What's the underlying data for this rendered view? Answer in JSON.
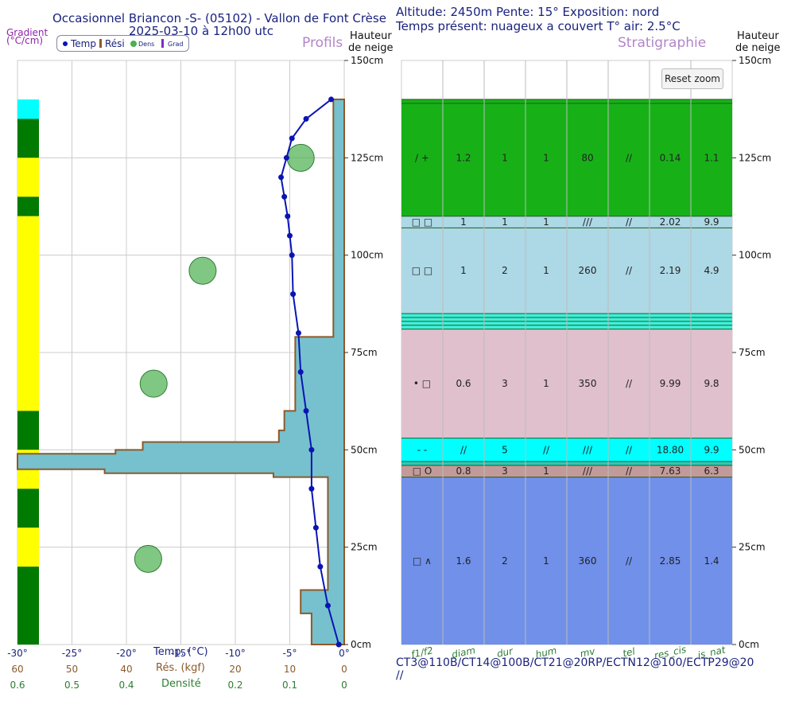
{
  "header": {
    "title_line1": "Occasionnel Briancon -S- (05102) - Vallon de Font Crèse",
    "title_line2": "2025-03-10 à 12h00 utc",
    "meta_line1": "Altitude: 2450m Pente: 15° Exposition: nord",
    "meta_line2": "Temps présent: nuageux a couvert T° air: 2.5°C",
    "gradient_label_line1": "Gradient",
    "gradient_label_line2": "(°C/cm)",
    "profils_label": "Profils",
    "stratigraphie_label": "Stratigraphie",
    "hauteur_label_line1": "Hauteur",
    "hauteur_label_line2": "de neige",
    "reset_zoom": "Reset zoom"
  },
  "legend": {
    "temp": "Temp",
    "res": "Rési",
    "dens": "Dens",
    "grad": "Grad"
  },
  "colors": {
    "temp_line": "#0a14b4",
    "resistance_fill": "#76c1cd",
    "resistance_edge": "#8b5a2b",
    "density_fill": "#4caf50",
    "grad_green": "#007a00",
    "grad_yellow": "#ffff00",
    "grad_cyan": "#00ffff"
  },
  "axes": {
    "height_ticks": [
      "150cm",
      "125cm",
      "100cm",
      "75cm",
      "50cm",
      "25cm",
      "0cm"
    ],
    "temp_ticks": [
      "-30°",
      "-25°",
      "-20°",
      "-15°",
      "-10°",
      "-5°",
      "0°"
    ],
    "temp_label": "Temp. (°C)",
    "res_ticks": [
      "60",
      "50",
      "40",
      "",
      "20",
      "10",
      "0"
    ],
    "res_label": "Rés. (kgf)",
    "dens_ticks": [
      "0.6",
      "0.5",
      "0.4",
      "",
      "0.2",
      "0.1",
      "0"
    ],
    "dens_label": "Densité",
    "strat_columns": [
      "f1/f2",
      "diam",
      "dur",
      "hum",
      "mv",
      "tel",
      "res_cis",
      "is_nat"
    ]
  },
  "tests": {
    "line1": "CT3@110B/CT14@100B/CT21@20RP/ECTN12@100/ECTP29@20",
    "line2": "//"
  },
  "chart_data": [
    {
      "type": "line",
      "title": "Profils - Température",
      "xlabel": "Temp. (°C)",
      "ylabel": "Hauteur de neige (cm)",
      "xlim": [
        -30,
        0
      ],
      "ylim": [
        0,
        150
      ],
      "points": [
        {
          "t": -1.2,
          "h": 140
        },
        {
          "t": -3.5,
          "h": 135
        },
        {
          "t": -4.8,
          "h": 130
        },
        {
          "t": -5.3,
          "h": 125
        },
        {
          "t": -5.8,
          "h": 120
        },
        {
          "t": -5.5,
          "h": 115
        },
        {
          "t": -5.2,
          "h": 110
        },
        {
          "t": -5.0,
          "h": 105
        },
        {
          "t": -4.8,
          "h": 100
        },
        {
          "t": -4.7,
          "h": 90
        },
        {
          "t": -4.2,
          "h": 80
        },
        {
          "t": -4.0,
          "h": 70
        },
        {
          "t": -3.5,
          "h": 60
        },
        {
          "t": -3.0,
          "h": 50
        },
        {
          "t": -3.0,
          "h": 40
        },
        {
          "t": -2.6,
          "h": 30
        },
        {
          "t": -2.2,
          "h": 20
        },
        {
          "t": -1.5,
          "h": 10
        },
        {
          "t": -0.5,
          "h": 0
        }
      ]
    },
    {
      "type": "area",
      "title": "Profils - Résistance (battage)",
      "xlabel": "Rés. (kgf)",
      "xlim": [
        60,
        0
      ],
      "ylim": [
        0,
        150
      ],
      "segments": [
        {
          "h_from": 0,
          "h_to": 8,
          "res": 6
        },
        {
          "h_from": 8,
          "h_to": 14,
          "res": 8
        },
        {
          "h_from": 14,
          "h_to": 43,
          "res": 3
        },
        {
          "h_from": 43,
          "h_to": 44,
          "res": 13
        },
        {
          "h_from": 44,
          "h_to": 45,
          "res": 44
        },
        {
          "h_from": 45,
          "h_to": 49,
          "res": 60
        },
        {
          "h_from": 49,
          "h_to": 50,
          "res": 42
        },
        {
          "h_from": 50,
          "h_to": 52,
          "res": 37
        },
        {
          "h_from": 52,
          "h_to": 55,
          "res": 12
        },
        {
          "h_from": 55,
          "h_to": 60,
          "res": 11
        },
        {
          "h_from": 60,
          "h_to": 79,
          "res": 9
        },
        {
          "h_from": 79,
          "h_to": 140,
          "res": 2
        }
      ]
    },
    {
      "type": "scatter",
      "title": "Profils - Densité",
      "xlabel": "Densité",
      "xlim": [
        0.6,
        0
      ],
      "points": [
        {
          "dens": 0.08,
          "h": 125
        },
        {
          "dens": 0.26,
          "h": 96
        },
        {
          "dens": 0.35,
          "h": 67
        },
        {
          "dens": 0.36,
          "h": 22
        }
      ]
    },
    {
      "type": "heatmap",
      "title": "Gradient (°C/cm)",
      "segments": [
        {
          "h_from": 140,
          "h_to": 135,
          "color": "cyan"
        },
        {
          "h_from": 135,
          "h_to": 125,
          "color": "green"
        },
        {
          "h_from": 125,
          "h_to": 115,
          "color": "yellow"
        },
        {
          "h_from": 115,
          "h_to": 110,
          "color": "green"
        },
        {
          "h_from": 110,
          "h_to": 60,
          "color": "yellow"
        },
        {
          "h_from": 60,
          "h_to": 50,
          "color": "green"
        },
        {
          "h_from": 50,
          "h_to": 40,
          "color": "yellow"
        },
        {
          "h_from": 40,
          "h_to": 30,
          "color": "green"
        },
        {
          "h_from": 30,
          "h_to": 20,
          "color": "yellow"
        },
        {
          "h_from": 20,
          "h_to": 0,
          "color": "green"
        }
      ]
    },
    {
      "type": "table",
      "title": "Stratigraphie",
      "columns": [
        "f1/f2",
        "diam",
        "dur",
        "hum",
        "mv",
        "tel",
        "res_cis",
        "is_nat"
      ],
      "layers": [
        {
          "top": 140,
          "bottom": 110,
          "color": "#17b117",
          "cells": [
            "/ +",
            "1.2",
            "1",
            "1",
            "80",
            "//",
            "0.14",
            "1.1"
          ]
        },
        {
          "top": 110,
          "bottom": 107,
          "color": "#add8e6",
          "cells": [
            "□ □",
            "1",
            "1",
            "1",
            "///",
            "//",
            "2.02",
            "9.9"
          ]
        },
        {
          "top": 107,
          "bottom": 85,
          "color": "#add8e6",
          "cells": [
            "□ □",
            "1",
            "2",
            "1",
            "260",
            "//",
            "2.19",
            "4.9"
          ]
        },
        {
          "top": 85,
          "bottom": 81,
          "color": "#3ef0dc",
          "cells": [
            "",
            "",
            "",
            "",
            "",
            "",
            "",
            ""
          ]
        },
        {
          "top": 81,
          "bottom": 53,
          "color": "#e0c0cc",
          "cells": [
            "• □",
            "0.6",
            "3",
            "1",
            "350",
            "//",
            "9.99",
            "9.8"
          ]
        },
        {
          "top": 53,
          "bottom": 47,
          "color": "#00ffff",
          "cells": [
            "- -",
            "//",
            "5",
            "//",
            "///",
            "//",
            "18.80",
            "9.9"
          ]
        },
        {
          "top": 47,
          "bottom": 46,
          "color": "#2ec8b8",
          "cells": [
            "",
            "",
            "",
            "",
            "",
            "",
            "",
            ""
          ]
        },
        {
          "top": 46,
          "bottom": 43,
          "color": "#c39a9a",
          "cells": [
            "□ O",
            "0.8",
            "3",
            "1",
            "///",
            "//",
            "7.63",
            "6.3"
          ]
        },
        {
          "top": 43,
          "bottom": 0,
          "color": "#7090ea",
          "cells": [
            "□ ∧",
            "1.6",
            "2",
            "1",
            "360",
            "//",
            "2.85",
            "1.4"
          ]
        }
      ]
    }
  ]
}
